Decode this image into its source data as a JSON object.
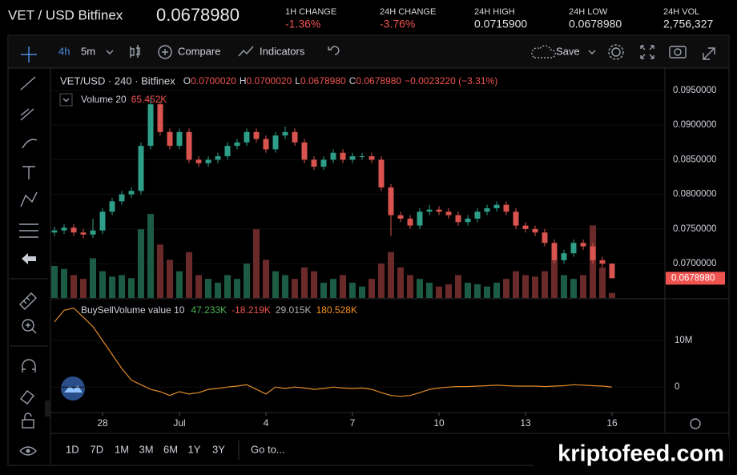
{
  "header": {
    "pair": "VET / USD Bitfinex",
    "price": "0.0678980",
    "stats": [
      {
        "label": "1H CHANGE",
        "value": "-1.36%",
        "color": "#ef5350"
      },
      {
        "label": "24H CHANGE",
        "value": "-3.76%",
        "color": "#ef5350"
      },
      {
        "label": "24H HIGH",
        "value": "0.0715900",
        "color": "#e0e0e0"
      },
      {
        "label": "24H LOW",
        "value": "0.0678980",
        "color": "#e0e0e0"
      },
      {
        "label": "24H VOL",
        "value": "2,756,327",
        "color": "#e0e0e0"
      }
    ]
  },
  "toolbar": {
    "intervals": [
      "4h",
      "5m"
    ],
    "compare": "Compare",
    "indicators": "Indicators",
    "save": "Save"
  },
  "chart_data": [
    {
      "type": "candlestick",
      "title": "VET/USD · 240 · Bitfinex",
      "ohlc_legend": [
        {
          "key": "O",
          "value": "0.0700020"
        },
        {
          "key": "H",
          "value": "0.0700020"
        },
        {
          "key": "L",
          "value": "0.0678980"
        },
        {
          "key": "C",
          "value": "0.0678980"
        }
      ],
      "change": "−0.0023220 (−3.31%)",
      "xlim": [
        -0.25,
        63.5
      ],
      "xticks": [
        {
          "value": 5,
          "label": "28"
        },
        {
          "value": 13,
          "label": "Jul"
        },
        {
          "value": 22,
          "label": "4"
        },
        {
          "value": 31,
          "label": "7"
        },
        {
          "value": 40,
          "label": "10"
        },
        {
          "value": 49,
          "label": "13"
        },
        {
          "value": 58,
          "label": "16"
        }
      ],
      "ylim": [
        0.06505,
        0.09811
      ],
      "yticks": [
        {
          "value": 0.095,
          "label": "0.0950000"
        },
        {
          "value": 0.09,
          "label": "0.0900000"
        },
        {
          "value": 0.085,
          "label": "0.0850000"
        },
        {
          "value": 0.08,
          "label": "0.0800000"
        },
        {
          "value": 0.075,
          "label": "0.0750000"
        },
        {
          "value": 0.07,
          "label": "0.0700000"
        }
      ],
      "up_color": "#2e9e88",
      "down_color": "#d9534f",
      "open": [
        0.0745,
        0.0748,
        0.0752,
        0.0745,
        0.0742,
        0.0748,
        0.0775,
        0.079,
        0.08,
        0.0805,
        0.087,
        0.093,
        0.089,
        0.087,
        0.089,
        0.085,
        0.0845,
        0.085,
        0.0855,
        0.087,
        0.0875,
        0.089,
        0.088,
        0.0865,
        0.0885,
        0.089,
        0.0875,
        0.085,
        0.084,
        0.085,
        0.086,
        0.085,
        0.0855,
        0.0855,
        0.085,
        0.081,
        0.077,
        0.0765,
        0.0755,
        0.0775,
        0.0778,
        0.0775,
        0.077,
        0.076,
        0.0765,
        0.0775,
        0.078,
        0.0785,
        0.0775,
        0.0755,
        0.075,
        0.0745,
        0.073,
        0.0705,
        0.0715,
        0.073,
        0.0725,
        0.0705,
        0.070002
      ],
      "high": [
        0.0753,
        0.0757,
        0.0757,
        0.075,
        0.0765,
        0.078,
        0.0795,
        0.0805,
        0.081,
        0.0875,
        0.094,
        0.0935,
        0.0895,
        0.0895,
        0.0895,
        0.0855,
        0.0855,
        0.086,
        0.0875,
        0.088,
        0.0895,
        0.0895,
        0.0885,
        0.089,
        0.0898,
        0.0895,
        0.088,
        0.0855,
        0.0855,
        0.0865,
        0.0865,
        0.086,
        0.086,
        0.086,
        0.0855,
        0.0815,
        0.0775,
        0.077,
        0.078,
        0.0785,
        0.0783,
        0.078,
        0.0775,
        0.077,
        0.078,
        0.0785,
        0.079,
        0.079,
        0.078,
        0.076,
        0.0755,
        0.075,
        0.0735,
        0.072,
        0.0735,
        0.0735,
        0.073,
        0.071,
        0.070002
      ],
      "low": [
        0.074,
        0.0743,
        0.074,
        0.0737,
        0.0737,
        0.0743,
        0.077,
        0.0785,
        0.0795,
        0.08,
        0.0865,
        0.0885,
        0.0865,
        0.0865,
        0.0845,
        0.084,
        0.084,
        0.0845,
        0.085,
        0.0865,
        0.087,
        0.0875,
        0.086,
        0.086,
        0.088,
        0.087,
        0.0845,
        0.0835,
        0.0835,
        0.0845,
        0.0845,
        0.0845,
        0.085,
        0.0845,
        0.0805,
        0.074,
        0.076,
        0.075,
        0.075,
        0.077,
        0.077,
        0.0765,
        0.0755,
        0.0755,
        0.076,
        0.077,
        0.0775,
        0.077,
        0.075,
        0.0745,
        0.074,
        0.0725,
        0.07,
        0.07,
        0.071,
        0.072,
        0.07,
        0.0695,
        0.067898
      ],
      "close": [
        0.0748,
        0.0752,
        0.0745,
        0.0742,
        0.0748,
        0.0775,
        0.079,
        0.08,
        0.0805,
        0.087,
        0.093,
        0.089,
        0.087,
        0.089,
        0.085,
        0.0845,
        0.085,
        0.0855,
        0.087,
        0.0875,
        0.089,
        0.088,
        0.0865,
        0.0885,
        0.089,
        0.0875,
        0.085,
        0.084,
        0.085,
        0.086,
        0.085,
        0.0855,
        0.0855,
        0.085,
        0.081,
        0.077,
        0.0765,
        0.0755,
        0.0775,
        0.0778,
        0.0775,
        0.077,
        0.076,
        0.0765,
        0.0775,
        0.078,
        0.0785,
        0.0775,
        0.0755,
        0.075,
        0.0745,
        0.073,
        0.0705,
        0.0715,
        0.073,
        0.0725,
        0.0705,
        0.07,
        0.067898
      ],
      "last_price_label": "0.0678980",
      "volume": {
        "name": "Volume 20",
        "value_label": "65.452K",
        "ylim": [
          0,
          3000
        ],
        "up_color": "#1d5c44",
        "down_color": "#6a2a2a",
        "values": [
          420,
          380,
          300,
          250,
          520,
          350,
          280,
          300,
          260,
          900,
          1100,
          700,
          500,
          350,
          600,
          300,
          250,
          200,
          300,
          250,
          450,
          900,
          500,
          350,
          300,
          250,
          400,
          350,
          200,
          250,
          300,
          200,
          150,
          250,
          450,
          600,
          400,
          300,
          250,
          200,
          150,
          180,
          300,
          200,
          180,
          150,
          200,
          250,
          350,
          300,
          280,
          350,
          500,
          300,
          250,
          300,
          950,
          400,
          65.452
        ]
      }
    },
    {
      "type": "line",
      "name": "BuySellVolume value 10",
      "readouts": [
        {
          "text": "47.233K",
          "color": "#4caf50"
        },
        {
          "text": "-18.219K",
          "color": "#ef5350"
        },
        {
          "text": "29.015K",
          "color": "#b0b0b0"
        },
        {
          "text": "180.528K",
          "color": "#f7931a"
        }
      ],
      "color": "#e08a2a",
      "xlim": [
        -0.25,
        63.5
      ],
      "ylim": [
        -5.3,
        18.8
      ],
      "yticks": [
        {
          "value": 10,
          "label": "10M"
        },
        0
      ],
      "values": [
        14,
        16.5,
        17,
        15,
        13,
        10,
        7,
        4,
        1.5,
        0.5,
        -0.5,
        -1,
        -1.8,
        -1,
        -1.5,
        -1.2,
        -0.5,
        -0.3,
        0,
        0.2,
        0.5,
        -0.5,
        -1.5,
        0,
        -0.3,
        0,
        -0.2,
        -0.5,
        -0.3,
        0,
        -0.2,
        -0.3,
        -0.2,
        -0.5,
        -1.2,
        -1.8,
        -2,
        -1.8,
        -1.2,
        -0.5,
        -0.2,
        0,
        0.1,
        0.1,
        0.2,
        0.3,
        0.4,
        0.3,
        0.2,
        0.2,
        0.2,
        0.1,
        0.2,
        0.3,
        0.5,
        0.4,
        0.3,
        0.2,
        0
      ]
    }
  ],
  "range_bar": {
    "ranges": [
      "1D",
      "7D",
      "1M",
      "3M",
      "6M",
      "1Y",
      "3Y"
    ],
    "goto": "Go to..."
  },
  "watermark": "kriptofeed.com"
}
